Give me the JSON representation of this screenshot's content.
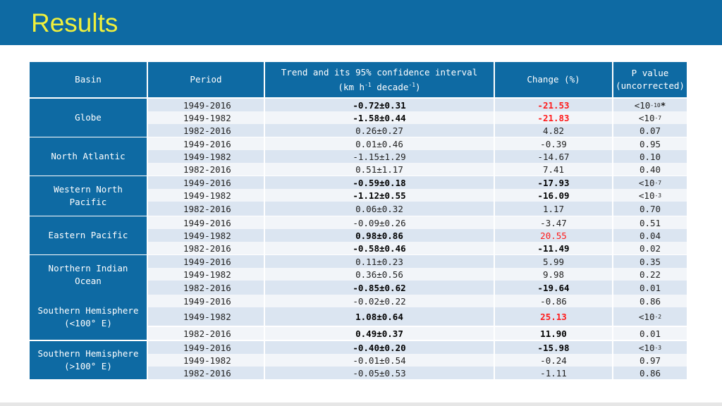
{
  "title": "Results",
  "headers": {
    "basin": "Basin",
    "period": "Period",
    "trend_line1": "Trend and its 95% confidence interval",
    "trend_line2_pre": "(km h",
    "trend_sup1": "-1",
    "trend_line2_mid": " decade",
    "trend_sup2": "-1",
    "trend_line2_post": ")",
    "change": "Change (%)",
    "pvalue_line1": "P value",
    "pvalue_line2": "(uncorrected)"
  },
  "groups": [
    {
      "basin_line1": "Globe",
      "basin_line2": ""
    },
    {
      "basin_line1": "North Atlantic",
      "basin_line2": ""
    },
    {
      "basin_line1": "Western North",
      "basin_line2": "Pacific"
    },
    {
      "basin_line1": "Eastern Pacific",
      "basin_line2": ""
    },
    {
      "basin_line1": "Northern Indian",
      "basin_line2": "Ocean"
    },
    {
      "basin_line1": "Southern Hemisphere",
      "basin_line2": "(<100° E)"
    },
    {
      "basin_line1": "Southern Hemisphere",
      "basin_line2": "(>100° E)"
    }
  ],
  "rows": [
    {
      "period": "1949-2016",
      "trend": "-0.72±0.31",
      "change": "-21.53",
      "p": "<10",
      "p_exp": "-10",
      "p_suffix": "*",
      "bold_trend": true,
      "bold_change": true,
      "red_change": true
    },
    {
      "period": "1949-1982",
      "trend": "-1.58±0.44",
      "change": "-21.83",
      "p": "<10",
      "p_exp": "-7",
      "p_suffix": "",
      "bold_trend": true,
      "bold_change": true,
      "red_change": true
    },
    {
      "period": "1982-2016",
      "trend": "0.26±0.27",
      "change": "4.82",
      "p": "0.07",
      "p_exp": "",
      "p_suffix": "",
      "bold_trend": false,
      "bold_change": false,
      "red_change": false
    },
    {
      "period": "1949-2016",
      "trend": "0.01±0.46",
      "change": "-0.39",
      "p": "0.95",
      "p_exp": "",
      "p_suffix": "",
      "bold_trend": false,
      "bold_change": false,
      "red_change": false
    },
    {
      "period": "1949-1982",
      "trend": "-1.15±1.29",
      "change": "-14.67",
      "p": "0.10",
      "p_exp": "",
      "p_suffix": "",
      "bold_trend": false,
      "bold_change": false,
      "red_change": false
    },
    {
      "period": "1982-2016",
      "trend": "0.51±1.17",
      "change": "7.41",
      "p": "0.40",
      "p_exp": "",
      "p_suffix": "",
      "bold_trend": false,
      "bold_change": false,
      "red_change": false
    },
    {
      "period": "1949-2016",
      "trend": "-0.59±0.18",
      "change": "-17.93",
      "p": "<10",
      "p_exp": "-7",
      "p_suffix": "",
      "bold_trend": true,
      "bold_change": true,
      "red_change": false
    },
    {
      "period": "1949-1982",
      "trend": "-1.12±0.55",
      "change": "-16.09",
      "p": "<10",
      "p_exp": "-3",
      "p_suffix": "",
      "bold_trend": true,
      "bold_change": true,
      "red_change": false
    },
    {
      "period": "1982-2016",
      "trend": "0.06±0.32",
      "change": "1.17",
      "p": "0.70",
      "p_exp": "",
      "p_suffix": "",
      "bold_trend": false,
      "bold_change": false,
      "red_change": false
    },
    {
      "period": "1949-2016",
      "trend": "-0.09±0.26",
      "change": "-3.47",
      "p": "0.51",
      "p_exp": "",
      "p_suffix": "",
      "bold_trend": false,
      "bold_change": false,
      "red_change": false
    },
    {
      "period": "1949-1982",
      "trend": "0.98±0.86",
      "change": "20.55",
      "p": "0.04",
      "p_exp": "",
      "p_suffix": "",
      "bold_trend": true,
      "bold_change": false,
      "red_change": true
    },
    {
      "period": "1982-2016",
      "trend": "-0.58±0.46",
      "change": "-11.49",
      "p": "0.02",
      "p_exp": "",
      "p_suffix": "",
      "bold_trend": true,
      "bold_change": true,
      "red_change": false
    },
    {
      "period": "1949-2016",
      "trend": "0.11±0.23",
      "change": "5.99",
      "p": "0.35",
      "p_exp": "",
      "p_suffix": "",
      "bold_trend": false,
      "bold_change": false,
      "red_change": false
    },
    {
      "period": "1949-1982",
      "trend": "0.36±0.56",
      "change": "9.98",
      "p": "0.22",
      "p_exp": "",
      "p_suffix": "",
      "bold_trend": false,
      "bold_change": false,
      "red_change": false
    },
    {
      "period": "1982-2016",
      "trend": "-0.85±0.62",
      "change": "-19.64",
      "p": "0.01",
      "p_exp": "",
      "p_suffix": "",
      "bold_trend": true,
      "bold_change": true,
      "red_change": false
    },
    {
      "period": "1949-2016",
      "trend": "-0.02±0.22",
      "change": "-0.86",
      "p": "0.86",
      "p_exp": "",
      "p_suffix": "",
      "bold_trend": false,
      "bold_change": false,
      "red_change": false
    },
    {
      "period": "1949-1982",
      "trend": "1.08±0.64",
      "change": "25.13",
      "p": "<10",
      "p_exp": "-2",
      "p_suffix": "",
      "bold_trend": true,
      "bold_change": true,
      "red_change": true
    },
    {
      "period": "1982-2016",
      "trend": "0.49±0.37",
      "change": "11.90",
      "p": "0.01",
      "p_exp": "",
      "p_suffix": "",
      "bold_trend": true,
      "bold_change": true,
      "red_change": false
    },
    {
      "period": "1949-2016",
      "trend": "-0.40±0.20",
      "change": "-15.98",
      "p": "<10",
      "p_exp": "-3",
      "p_suffix": "",
      "bold_trend": true,
      "bold_change": true,
      "red_change": false
    },
    {
      "period": "1949-1982",
      "trend": "-0.01±0.54",
      "change": "-0.24",
      "p": "0.97",
      "p_exp": "",
      "p_suffix": "",
      "bold_trend": false,
      "bold_change": false,
      "red_change": false
    },
    {
      "period": "1982-2016",
      "trend": "-0.05±0.53",
      "change": "-1.11",
      "p": "0.86",
      "p_exp": "",
      "p_suffix": "",
      "bold_trend": false,
      "bold_change": false,
      "red_change": false
    }
  ],
  "colors": {
    "header_bg": "#0e6aa3",
    "title_color": "#f0f03c",
    "row_odd": "#dbe5f1",
    "row_even": "#f2f5f9",
    "highlight_red": "#ff1a1a"
  }
}
